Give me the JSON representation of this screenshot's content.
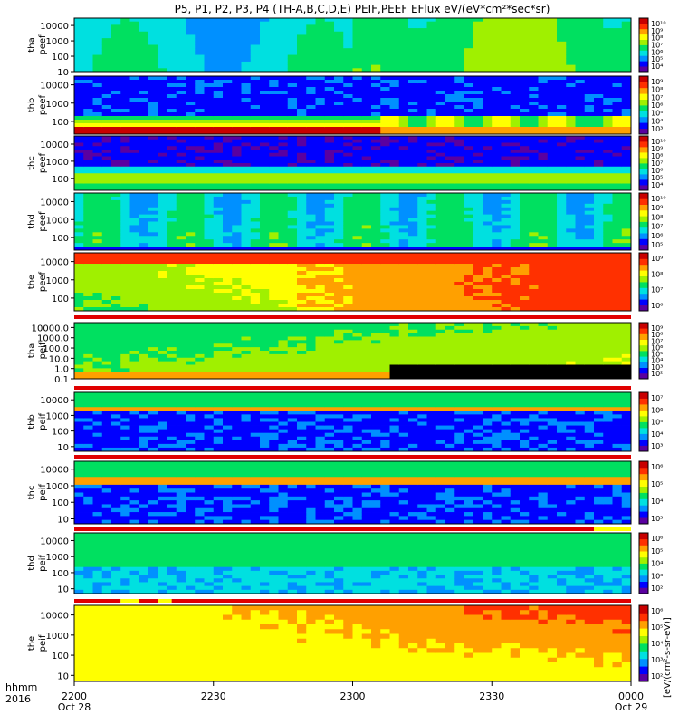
{
  "title": "P5, P1, P2, P3, P4 (TH-A,B,C,D,E) PEIF,PEEF EFlux eV/(eV*cm²*sec*sr)",
  "colorbar_unit_label": "[eV/(cm²-s-sr-eV)]",
  "time_axis": {
    "row1_prefix": "hhmm",
    "row2_prefix": "2016",
    "ticks": [
      {
        "t": 0,
        "label": "2200",
        "date": "Oct 28"
      },
      {
        "t": 30,
        "label": "2230",
        "date": ""
      },
      {
        "t": 60,
        "label": "2300",
        "date": ""
      },
      {
        "t": 90,
        "label": "2330",
        "date": ""
      },
      {
        "t": 120,
        "label": "0000",
        "date": "Oct 29"
      }
    ],
    "range_minutes": [
      0,
      120
    ]
  },
  "colors": {
    "spectrogram_scale": [
      "#5a00a0",
      "#0000ff",
      "#0090ff",
      "#00e0e0",
      "#00e060",
      "#a0f000",
      "#ffff00",
      "#ffa000",
      "#ff3000",
      "#c80000"
    ],
    "flag_red": "#e00000",
    "flag_yellow": "#ffff00",
    "background_black": "#000000"
  },
  "chart_data": [
    {
      "type": "heatmap",
      "name": "tha peef",
      "label_line1": "tha",
      "label_line2": "peef",
      "yticks": [
        "10000",
        "1000",
        "100",
        "10"
      ],
      "ylog": true,
      "ylim": [
        10,
        30000
      ],
      "colorbar_ticks": [
        "10¹⁰",
        "10⁹",
        "10⁸",
        "10⁷",
        "10⁶",
        "10⁵",
        "10⁴"
      ],
      "pattern": "tha_e"
    },
    {
      "type": "heatmap",
      "name": "thb peef",
      "label_line1": "thb",
      "label_line2": "peef",
      "yticks": [
        "10000",
        "1000",
        "100"
      ],
      "ylog": true,
      "ylim": [
        20,
        30000
      ],
      "colorbar_ticks": [
        "10⁹",
        "10⁸",
        "10⁷",
        "10⁶",
        "10⁵",
        "10⁴",
        "10³"
      ],
      "pattern": "thb_e"
    },
    {
      "type": "heatmap",
      "name": "thc peef",
      "label_line1": "thc",
      "label_line2": "peef",
      "yticks": [
        "10000",
        "1000",
        "100"
      ],
      "ylog": true,
      "ylim": [
        20,
        30000
      ],
      "colorbar_ticks": [
        "10¹⁰",
        "10⁹",
        "10⁸",
        "10⁷",
        "10⁶",
        "10⁵",
        "10⁴"
      ],
      "pattern": "thc_e"
    },
    {
      "type": "heatmap",
      "name": "thd peef",
      "label_line1": "thd",
      "label_line2": "peef",
      "yticks": [
        "10000",
        "1000",
        "100"
      ],
      "ylog": true,
      "ylim": [
        20,
        30000
      ],
      "colorbar_ticks": [
        "10¹⁰",
        "10⁹",
        "10⁸",
        "10⁷",
        "10⁶",
        "10⁵"
      ],
      "pattern": "thd_e"
    },
    {
      "type": "heatmap",
      "name": "the peef",
      "label_line1": "the",
      "label_line2": "peef",
      "yticks": [
        "10000",
        "1000",
        "100"
      ],
      "ylog": true,
      "ylim": [
        20,
        30000
      ],
      "colorbar_ticks": [
        "10⁹",
        "10⁸",
        "10⁷",
        "10⁶"
      ],
      "pattern": "the_e"
    },
    {
      "type": "heatmap",
      "name": "tha peif",
      "label_line1": "tha",
      "label_line2": "peif",
      "yticks": [
        "10000.0",
        "1000.0",
        "100.0",
        "10.0",
        "1.0",
        "0.1"
      ],
      "ylog": true,
      "ylim": [
        0.1,
        30000
      ],
      "colorbar_ticks": [
        "10⁹",
        "10⁸",
        "10⁷",
        "10⁶",
        "10⁵",
        "10⁴",
        "10³",
        "10²"
      ],
      "pattern": "tha_i"
    },
    {
      "type": "heatmap",
      "name": "thb peif",
      "label_line1": "thb",
      "label_line2": "peif",
      "yticks": [
        "10000",
        "1000",
        "100",
        "10"
      ],
      "ylog": true,
      "ylim": [
        5,
        30000
      ],
      "colorbar_ticks": [
        "10⁷",
        "10⁶",
        "10⁵",
        "10⁴",
        "10³"
      ],
      "pattern": "thb_i"
    },
    {
      "type": "heatmap",
      "name": "thc peif",
      "label_line1": "thc",
      "label_line2": "peif",
      "yticks": [
        "10000",
        "1000",
        "100",
        "10"
      ],
      "ylog": true,
      "ylim": [
        5,
        30000
      ],
      "colorbar_ticks": [
        "10⁶",
        "10⁵",
        "10⁴",
        "10³"
      ],
      "pattern": "thc_i"
    },
    {
      "type": "heatmap",
      "name": "thd peif",
      "label_line1": "thd",
      "label_line2": "peif",
      "yticks": [
        "10000",
        "1000",
        "100",
        "10"
      ],
      "ylog": true,
      "ylim": [
        5,
        30000
      ],
      "colorbar_ticks": [
        "10⁶",
        "10⁵",
        "10⁴",
        "10³",
        "10²"
      ],
      "pattern": "thd_i"
    },
    {
      "type": "heatmap",
      "name": "the peif",
      "label_line1": "the",
      "label_line2": "peif",
      "yticks": [
        "10000",
        "1000",
        "100",
        "10"
      ],
      "ylog": true,
      "ylim": [
        5,
        30000
      ],
      "colorbar_ticks": [
        "10⁶",
        "10⁵",
        "10⁴",
        "10³",
        "10²"
      ],
      "pattern": "the_i"
    }
  ],
  "flag_bars": [
    {
      "after_panel": 4,
      "segments": [
        {
          "from": 0,
          "to": 120,
          "color": "red"
        }
      ]
    },
    {
      "after_panel": 5,
      "segments": [
        {
          "from": 0,
          "to": 120,
          "color": "red"
        }
      ]
    },
    {
      "after_panel": 6,
      "segments": [
        {
          "from": 0,
          "to": 120,
          "color": "red"
        }
      ]
    },
    {
      "after_panel": 7,
      "segments": [
        {
          "from": 0,
          "to": 112,
          "color": "red"
        },
        {
          "from": 112,
          "to": 120,
          "color": "yellow"
        }
      ]
    },
    {
      "after_panel": 8,
      "segments": [
        {
          "from": 0,
          "to": 10,
          "color": "red"
        },
        {
          "from": 10,
          "to": 14,
          "color": "yellow"
        },
        {
          "from": 14,
          "to": 18,
          "color": "red"
        },
        {
          "from": 18,
          "to": 21,
          "color": "yellow"
        },
        {
          "from": 21,
          "to": 120,
          "color": "red"
        }
      ]
    }
  ]
}
